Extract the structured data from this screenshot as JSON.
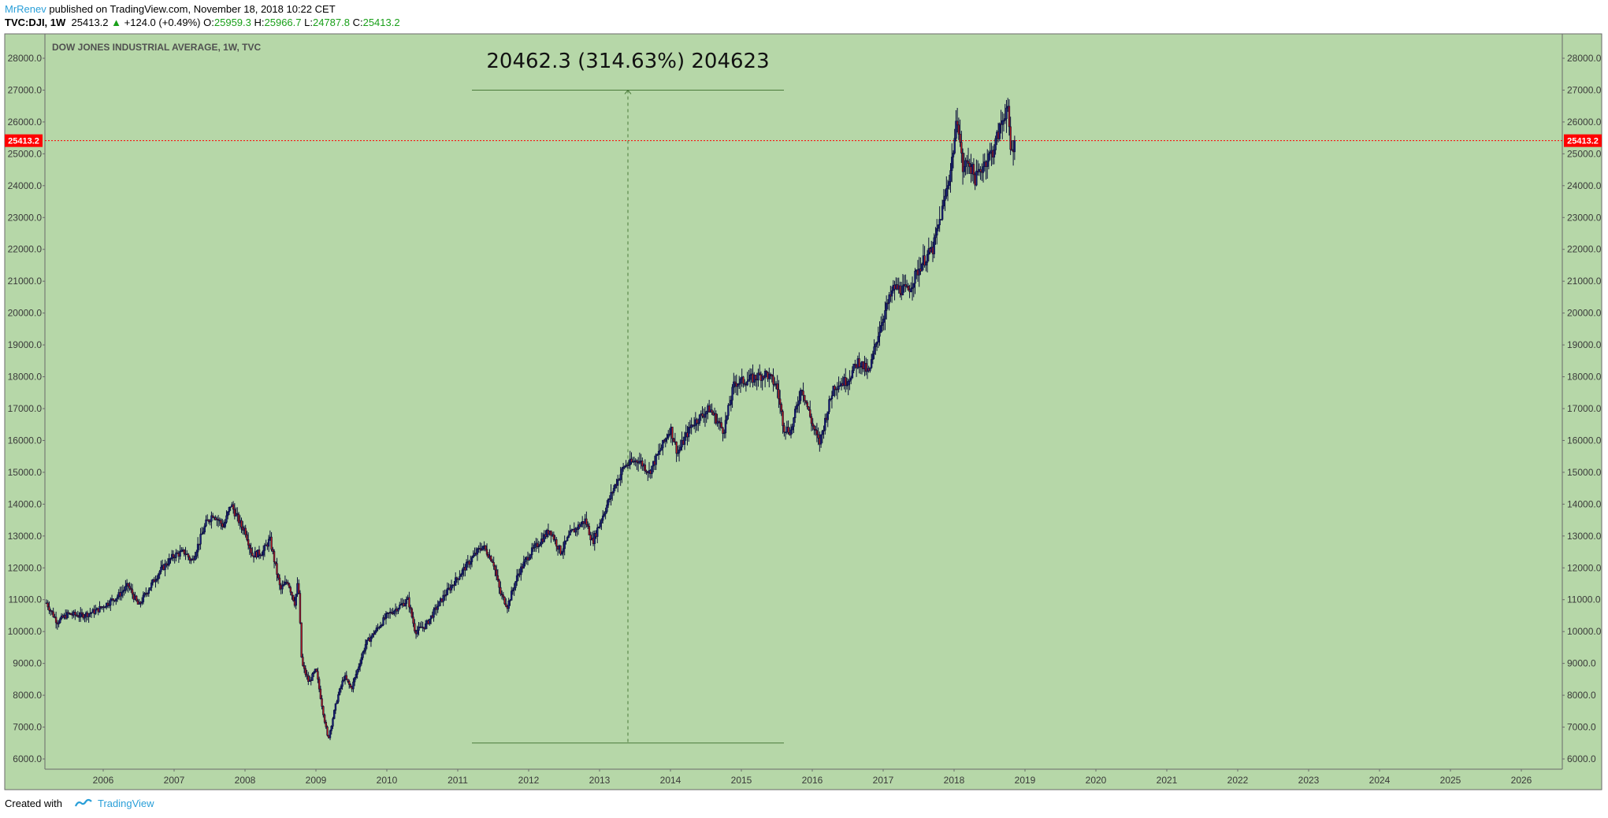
{
  "header": {
    "author": "MrRenev",
    "published_text": "published on TradingView.com, November 18, 2018 10:22 CET",
    "symbol": "TVC:DJI, 1W",
    "last": "25413.2",
    "up_icon": "triangle-up-icon",
    "change": "+124.0 (+0.49%)",
    "o_label": "O:",
    "o_value": "25959.3",
    "h_label": "H:",
    "h_value": "25966.7",
    "l_label": "L:",
    "l_value": "24787.8",
    "c_label": "C:",
    "c_value": "25413.2"
  },
  "footer": {
    "created_with": "Created with",
    "brand": "TradingView",
    "logo_icon": "tradingview-logo-icon"
  },
  "colors": {
    "plot_bg": "#b6d7a8",
    "candle_outline": "#0b0f3a",
    "candle_up": "#1a237e",
    "candle_down": "#b71c1c",
    "measure_line": "#4a7a3a",
    "last_price_line": "#ff0000",
    "last_price_tag": "#ff0000"
  },
  "chart_data": {
    "type": "candlestick",
    "title": "DOW JONES INDUSTRIAL AVERAGE, 1W, TVC",
    "interval": "1W",
    "ylim": [
      6000,
      28000
    ],
    "y_ticks": [
      "6000.0",
      "7000.0",
      "8000.0",
      "9000.0",
      "10000.0",
      "11000.0",
      "12000.0",
      "13000.0",
      "14000.0",
      "15000.0",
      "16000.0",
      "17000.0",
      "18000.0",
      "19000.0",
      "20000.0",
      "21000.0",
      "22000.0",
      "23000.0",
      "24000.0",
      "25000.0",
      "26000.0",
      "27000.0",
      "28000.0"
    ],
    "x_ticks": [
      "2006",
      "2007",
      "2008",
      "2009",
      "2010",
      "2011",
      "2012",
      "2013",
      "2014",
      "2015",
      "2016",
      "2017",
      "2018",
      "2019",
      "2020",
      "2021",
      "2022",
      "2023",
      "2024",
      "2025",
      "2026"
    ],
    "xlim": [
      2005.2,
      2026.9
    ],
    "last_price": 25413.2,
    "last_price_label": "25413.2",
    "grid": false,
    "price_path": [
      [
        2005.2,
        10900
      ],
      [
        2005.35,
        10300
      ],
      [
        2005.5,
        10550
      ],
      [
        2005.7,
        10500
      ],
      [
        2005.9,
        10650
      ],
      [
        2006.0,
        10800
      ],
      [
        2006.2,
        11100
      ],
      [
        2006.35,
        11450
      ],
      [
        2006.5,
        10800
      ],
      [
        2006.6,
        11200
      ],
      [
        2006.8,
        11900
      ],
      [
        2007.0,
        12400
      ],
      [
        2007.15,
        12500
      ],
      [
        2007.25,
        12200
      ],
      [
        2007.45,
        13400
      ],
      [
        2007.55,
        13700
      ],
      [
        2007.7,
        13300
      ],
      [
        2007.8,
        14000
      ],
      [
        2007.95,
        13300
      ],
      [
        2008.0,
        13200
      ],
      [
        2008.1,
        12400
      ],
      [
        2008.25,
        12500
      ],
      [
        2008.35,
        12900
      ],
      [
        2008.5,
        11300
      ],
      [
        2008.6,
        11600
      ],
      [
        2008.7,
        10900
      ],
      [
        2008.75,
        11600
      ],
      [
        2008.8,
        9000
      ],
      [
        2008.9,
        8400
      ],
      [
        2009.0,
        8800
      ],
      [
        2009.1,
        7500
      ],
      [
        2009.17,
        6600
      ],
      [
        2009.3,
        7900
      ],
      [
        2009.4,
        8600
      ],
      [
        2009.5,
        8200
      ],
      [
        2009.7,
        9600
      ],
      [
        2010.0,
        10500
      ],
      [
        2010.3,
        11000
      ],
      [
        2010.4,
        10000
      ],
      [
        2010.55,
        10200
      ],
      [
        2010.8,
        11100
      ],
      [
        2011.0,
        11700
      ],
      [
        2011.2,
        12300
      ],
      [
        2011.35,
        12700
      ],
      [
        2011.5,
        12200
      ],
      [
        2011.6,
        11200
      ],
      [
        2011.7,
        10800
      ],
      [
        2011.85,
        11800
      ],
      [
        2012.0,
        12400
      ],
      [
        2012.3,
        13200
      ],
      [
        2012.45,
        12500
      ],
      [
        2012.6,
        13100
      ],
      [
        2012.8,
        13500
      ],
      [
        2012.9,
        12800
      ],
      [
        2013.0,
        13400
      ],
      [
        2013.2,
        14500
      ],
      [
        2013.35,
        15200
      ],
      [
        2013.55,
        15400
      ],
      [
        2013.7,
        15000
      ],
      [
        2013.9,
        15900
      ],
      [
        2014.0,
        16400
      ],
      [
        2014.1,
        15600
      ],
      [
        2014.3,
        16500
      ],
      [
        2014.55,
        17000
      ],
      [
        2014.75,
        16300
      ],
      [
        2014.9,
        17800
      ],
      [
        2015.1,
        17900
      ],
      [
        2015.35,
        18100
      ],
      [
        2015.5,
        17700
      ],
      [
        2015.6,
        16400
      ],
      [
        2015.7,
        16300
      ],
      [
        2015.85,
        17700
      ],
      [
        2016.0,
        16500
      ],
      [
        2016.1,
        15900
      ],
      [
        2016.3,
        17700
      ],
      [
        2016.5,
        17900
      ],
      [
        2016.65,
        18500
      ],
      [
        2016.8,
        18100
      ],
      [
        2016.9,
        19100
      ],
      [
        2017.0,
        19900
      ],
      [
        2017.15,
        20800
      ],
      [
        2017.35,
        20700
      ],
      [
        2017.55,
        21600
      ],
      [
        2017.7,
        22000
      ],
      [
        2017.85,
        23400
      ],
      [
        2017.95,
        24500
      ],
      [
        2018.05,
        26200
      ],
      [
        2018.12,
        24500
      ],
      [
        2018.2,
        24800
      ],
      [
        2018.3,
        24200
      ],
      [
        2018.45,
        24800
      ],
      [
        2018.55,
        25100
      ],
      [
        2018.7,
        26200
      ],
      [
        2018.75,
        26500
      ],
      [
        2018.8,
        25000
      ],
      [
        2018.86,
        25413.2
      ]
    ],
    "measure": {
      "label": "20462.3 (314.63%) 204623",
      "low": 6500,
      "high": 27000,
      "x_start": 2011.2,
      "x_end": 2015.6,
      "x_mid": 2013.4
    }
  }
}
